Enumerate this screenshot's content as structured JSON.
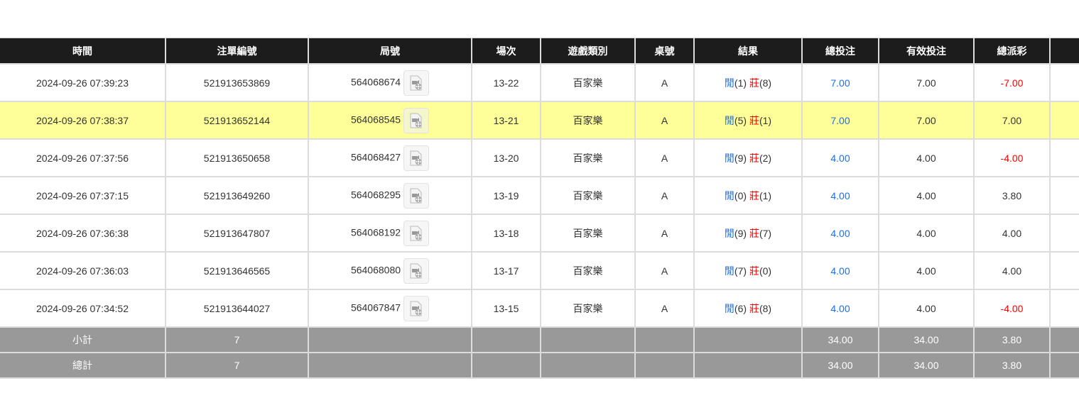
{
  "columns": [
    "時間",
    "注單編號",
    "局號",
    "場次",
    "遊戲類別",
    "桌號",
    "結果",
    "總投注",
    "有效投注",
    "總派彩",
    ""
  ],
  "result_labels": {
    "player": "閒",
    "banker": "莊"
  },
  "rows": [
    {
      "time": "2024-09-26 07:39:23",
      "bet_id": "521913653869",
      "round": "564068674",
      "shoe": "13-22",
      "game": "百家樂",
      "table": "A",
      "player": "(1)",
      "banker": "(8)",
      "total_bet": "7.00",
      "valid_bet": "7.00",
      "payout": "-7.00",
      "payout_neg": true,
      "highlight": false
    },
    {
      "time": "2024-09-26 07:38:37",
      "bet_id": "521913652144",
      "round": "564068545",
      "shoe": "13-21",
      "game": "百家樂",
      "table": "A",
      "player": "(5)",
      "banker": "(1)",
      "total_bet": "7.00",
      "valid_bet": "7.00",
      "payout": "7.00",
      "payout_neg": false,
      "highlight": true
    },
    {
      "time": "2024-09-26 07:37:56",
      "bet_id": "521913650658",
      "round": "564068427",
      "shoe": "13-20",
      "game": "百家樂",
      "table": "A",
      "player": "(9)",
      "banker": "(2)",
      "total_bet": "4.00",
      "valid_bet": "4.00",
      "payout": "-4.00",
      "payout_neg": true,
      "highlight": false
    },
    {
      "time": "2024-09-26 07:37:15",
      "bet_id": "521913649260",
      "round": "564068295",
      "shoe": "13-19",
      "game": "百家樂",
      "table": "A",
      "player": "(0)",
      "banker": "(1)",
      "total_bet": "4.00",
      "valid_bet": "4.00",
      "payout": "3.80",
      "payout_neg": false,
      "highlight": false
    },
    {
      "time": "2024-09-26 07:36:38",
      "bet_id": "521913647807",
      "round": "564068192",
      "shoe": "13-18",
      "game": "百家樂",
      "table": "A",
      "player": "(9)",
      "banker": "(7)",
      "total_bet": "4.00",
      "valid_bet": "4.00",
      "payout": "4.00",
      "payout_neg": false,
      "highlight": false
    },
    {
      "time": "2024-09-26 07:36:03",
      "bet_id": "521913646565",
      "round": "564068080",
      "shoe": "13-17",
      "game": "百家樂",
      "table": "A",
      "player": "(7)",
      "banker": "(0)",
      "total_bet": "4.00",
      "valid_bet": "4.00",
      "payout": "4.00",
      "payout_neg": false,
      "highlight": false
    },
    {
      "time": "2024-09-26 07:34:52",
      "bet_id": "521913644027",
      "round": "564067847",
      "shoe": "13-15",
      "game": "百家樂",
      "table": "A",
      "player": "(6)",
      "banker": "(8)",
      "total_bet": "4.00",
      "valid_bet": "4.00",
      "payout": "-4.00",
      "payout_neg": true,
      "highlight": false
    }
  ],
  "subtotal": {
    "label": "小計",
    "count": "7",
    "total_bet": "34.00",
    "valid_bet": "34.00",
    "payout": "3.80"
  },
  "grand_total": {
    "label": "總計",
    "count": "7",
    "total_bet": "34.00",
    "valid_bet": "34.00",
    "payout": "3.80"
  },
  "colors": {
    "header_bg": "#1c1c1c",
    "highlight": "#ffff99",
    "summary_bg": "#999999",
    "positive_blue": "#1e6fe0",
    "negative_red": "#ff0000"
  }
}
